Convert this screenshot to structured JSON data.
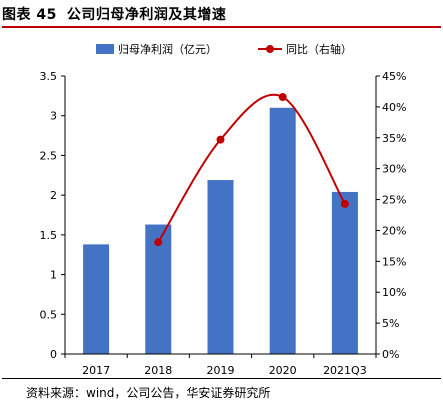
{
  "figure": {
    "label": "图表 45",
    "title": "公司归母净利润及其增速",
    "source": "资料来源：wind，公司公告，华安证券研究所"
  },
  "chart_data": {
    "type": "bar",
    "categories": [
      "2017",
      "2018",
      "2019",
      "2020",
      "2021Q3"
    ],
    "series": [
      {
        "name": "归母净利润（亿元）",
        "type": "bar",
        "axis": "left",
        "values": [
          1.38,
          1.63,
          2.19,
          3.1,
          2.04
        ],
        "color": "#4472c4"
      },
      {
        "name": "同比（右轴）",
        "type": "line",
        "axis": "right",
        "smooth": true,
        "values": [
          null,
          18.1,
          34.7,
          41.6,
          24.3
        ],
        "color": "#c00000"
      }
    ],
    "y_left": {
      "min": 0,
      "max": 3.5,
      "ticks": [
        "0",
        "0.5",
        "1",
        "1.5",
        "2",
        "2.5",
        "3",
        "3.5"
      ]
    },
    "y_right": {
      "min": 0,
      "max": 45,
      "ticks": [
        "0%",
        "5%",
        "10%",
        "15%",
        "20%",
        "25%",
        "30%",
        "35%",
        "40%",
        "45%"
      ]
    },
    "legend_position": "top-center",
    "grid": false
  }
}
